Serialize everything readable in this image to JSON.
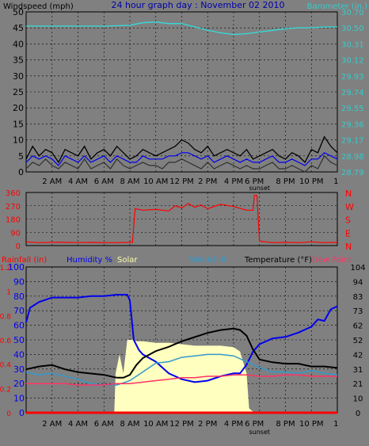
{
  "chart_data": [
    {
      "id": "wind-baro",
      "type": "line",
      "title": "24 hour graph day : November 02 2010",
      "ylabel": "Windspeed (mph)",
      "y2label": "Barometer (in.)",
      "ylim": [
        0,
        50
      ],
      "y_ticks": [
        "50",
        "45",
        "40",
        "35",
        "30",
        "25",
        "20",
        "15",
        "10",
        "5",
        "0"
      ],
      "y2lim": [
        28.79,
        30.7
      ],
      "y2_ticks": [
        "30.70",
        "30.50",
        "30.31",
        "30.12",
        "29.93",
        "29.74",
        "29.55",
        "29.36",
        "29.17",
        "28.98",
        "28.79"
      ],
      "xlim": [
        0,
        24
      ],
      "x_ticks": [
        {
          "x": 2,
          "label": "2 AM"
        },
        {
          "x": 4,
          "label": "4 AM"
        },
        {
          "x": 6,
          "label": "6 AM"
        },
        {
          "x": 8,
          "label": "8 AM"
        },
        {
          "x": 10,
          "label": "10 AM"
        },
        {
          "x": 12,
          "label": "12 PM"
        },
        {
          "x": 14,
          "label": "2 PM"
        },
        {
          "x": 16,
          "label": "4 PM"
        },
        {
          "x": 18,
          "label": "sunset"
        },
        {
          "x": 20,
          "label": "8 PM"
        },
        {
          "x": 22,
          "label": "10 PM"
        },
        {
          "x": 23.9,
          "label": "1"
        }
      ],
      "x_extra_label": {
        "x": 17.6,
        "label": "6 PM"
      },
      "grid": true,
      "colors": {
        "gust": "#000000",
        "avg": "#0000ee",
        "dir": "#303030",
        "baro": "#33dddd",
        "title": "#0000aa",
        "y2": "#33cccc"
      },
      "series": [
        {
          "key": "gust",
          "x": [
            0,
            0.5,
            1,
            1.5,
            2,
            2.5,
            3,
            3.5,
            4,
            4.5,
            5,
            5.5,
            6,
            6.5,
            7,
            7.5,
            8,
            8.5,
            9,
            9.5,
            10,
            10.5,
            11,
            11.5,
            12,
            12.5,
            13,
            13.5,
            14,
            14.5,
            15,
            15.5,
            16,
            16.5,
            17,
            17.5,
            18,
            18.5,
            19,
            19.5,
            20,
            20.5,
            21,
            21.5,
            22,
            22.5,
            23,
            23.5,
            24
          ],
          "values": [
            4,
            8,
            5,
            7,
            6,
            3,
            7,
            6,
            5,
            8,
            4,
            6,
            7,
            5,
            8,
            6,
            4,
            5,
            7,
            6,
            5,
            6,
            7,
            8,
            10,
            9,
            7,
            6,
            8,
            5,
            6,
            7,
            6,
            5,
            7,
            4,
            5,
            6,
            7,
            5,
            4,
            6,
            5,
            3,
            7,
            6,
            11,
            8,
            6
          ]
        },
        {
          "key": "avg",
          "x": [
            0,
            0.5,
            1,
            1.5,
            2,
            2.5,
            3,
            3.5,
            4,
            4.5,
            5,
            5.5,
            6,
            6.5,
            7,
            7.5,
            8,
            8.5,
            9,
            9.5,
            10,
            10.5,
            11,
            11.5,
            12,
            12.5,
            13,
            13.5,
            14,
            14.5,
            15,
            15.5,
            16,
            16.5,
            17,
            17.5,
            18,
            18.5,
            19,
            19.5,
            20,
            20.5,
            21,
            21.5,
            22,
            22.5,
            23,
            23.5,
            24
          ],
          "values": [
            3,
            5,
            4,
            5,
            4,
            2,
            5,
            4,
            3,
            5,
            3,
            4,
            5,
            3,
            5,
            4,
            3,
            3,
            5,
            4,
            4,
            4,
            5,
            5,
            6,
            6,
            5,
            4,
            5,
            3,
            4,
            5,
            4,
            3,
            4,
            3,
            3,
            4,
            5,
            3,
            3,
            4,
            3,
            2,
            4,
            4,
            6,
            5,
            4
          ]
        },
        {
          "key": "dir",
          "x": [
            0,
            0.5,
            1,
            1.5,
            2,
            2.5,
            3,
            3.5,
            4,
            4.5,
            5,
            5.5,
            6,
            6.5,
            7,
            7.5,
            8,
            8.5,
            9,
            9.5,
            10,
            10.5,
            11,
            11.5,
            12,
            12.5,
            13,
            13.5,
            14,
            14.5,
            15,
            15.5,
            16,
            16.5,
            17,
            17.5,
            18,
            18.5,
            19,
            19.5,
            20,
            20.5,
            21,
            21.5,
            22,
            22.5,
            23,
            23.5,
            24
          ],
          "values": [
            1,
            3,
            2,
            4,
            2,
            1,
            3,
            2,
            1,
            4,
            1,
            2,
            3,
            1,
            4,
            2,
            1,
            2,
            3,
            2,
            2,
            1,
            3,
            3,
            4,
            3,
            2,
            1,
            3,
            1,
            2,
            3,
            2,
            1,
            2,
            1,
            1,
            2,
            3,
            1,
            1,
            2,
            1,
            0,
            2,
            1,
            5,
            3,
            2
          ]
        },
        {
          "key": "baro",
          "x": [
            0,
            2,
            4,
            6,
            8,
            9,
            10,
            11,
            12,
            13,
            14,
            15,
            16,
            17,
            18,
            19,
            20,
            21,
            22,
            23,
            24
          ],
          "values": [
            30.53,
            30.53,
            30.53,
            30.53,
            30.54,
            30.57,
            30.58,
            30.56,
            30.56,
            30.52,
            30.48,
            30.45,
            30.43,
            30.44,
            30.46,
            30.48,
            30.5,
            30.51,
            30.51,
            30.52,
            30.52
          ]
        }
      ]
    },
    {
      "id": "wind-direction",
      "type": "line",
      "ylim": [
        0,
        360
      ],
      "y_ticks": [
        "360",
        "270",
        "180",
        "90",
        "0"
      ],
      "y2_ticks": [
        "N",
        "W",
        "S",
        "E",
        "N"
      ],
      "xlim": [
        0,
        24
      ],
      "grid": true,
      "colors": {
        "dir": "#ff0000",
        "y_left": "#ff0000",
        "y_right": "#ff0000"
      },
      "series": [
        {
          "key": "dir",
          "x": [
            0,
            1,
            2,
            3,
            4,
            5,
            6,
            7,
            8,
            8.2,
            8.4,
            9,
            10,
            11,
            11.5,
            12,
            12.5,
            13,
            13.5,
            14,
            15,
            16,
            17,
            17.5,
            17.6,
            17.8,
            18,
            18.5,
            19,
            20,
            21,
            22,
            23,
            24
          ],
          "values": [
            25,
            20,
            22,
            22,
            20,
            22,
            20,
            20,
            22,
            22,
            250,
            240,
            245,
            235,
            270,
            255,
            285,
            260,
            275,
            250,
            280,
            265,
            240,
            240,
            340,
            340,
            30,
            25,
            20,
            22,
            20,
            25,
            20,
            22
          ]
        }
      ]
    },
    {
      "id": "temp-humidity",
      "type": "line",
      "labels": {
        "rain": "Rainfall (in)",
        "humidity": "Humidity %",
        "solar": "Solar",
        "windchill": "Windchill",
        "temp": "Temperature (°F)",
        "dewpoint": "Dew Point"
      },
      "left_outer_ticks": [
        "1.2",
        "1",
        "0.8",
        "0.6",
        "0.4",
        "0.2",
        "0"
      ],
      "left_inner_ticks": [
        "100",
        "90",
        "80",
        "70",
        "60",
        "50",
        "40",
        "30",
        "20",
        "10",
        "0"
      ],
      "right_ticks": [
        "104",
        "94",
        "83",
        "73",
        "62",
        "52",
        "42",
        "31",
        "21",
        "10",
        "0"
      ],
      "ylim": [
        0,
        100
      ],
      "y2lim": [
        0,
        104
      ],
      "xlim": [
        0,
        24
      ],
      "grid": true,
      "colors": {
        "rain": "#ff0000",
        "humidity": "#0000ee",
        "solar": "#ffffc0",
        "solar_label": "#ffffaa",
        "windchill": "#3399cc",
        "temp": "#000000",
        "dewpoint": "#ff3366"
      },
      "series": [
        {
          "key": "solar",
          "x": [
            0,
            6.8,
            6.9,
            7.2,
            7.5,
            7.8,
            8.0,
            8.2,
            8.5,
            9,
            10,
            11,
            12,
            13,
            14,
            15,
            16,
            16.5,
            17,
            17.2,
            17.6,
            24
          ],
          "values": [
            0,
            0,
            27,
            40,
            27,
            50,
            50,
            50,
            49,
            49,
            48,
            48,
            47,
            46,
            46,
            46,
            45,
            42,
            27,
            3,
            0,
            0
          ]
        },
        {
          "key": "humidity",
          "x": [
            0,
            0.3,
            1,
            2,
            3,
            4,
            5,
            6,
            7,
            7.8,
            8,
            8.3,
            8.7,
            9,
            10,
            11,
            12,
            13,
            14,
            15,
            16,
            16.5,
            17,
            17.5,
            18,
            19,
            20,
            21,
            22,
            22.5,
            23,
            23.5,
            24
          ],
          "values": [
            62,
            72,
            76,
            79,
            79,
            79,
            80,
            80,
            81,
            81,
            77,
            50,
            43,
            40,
            35,
            27,
            23,
            21,
            22,
            25,
            27,
            27,
            33,
            42,
            47,
            51,
            52,
            55,
            59,
            64,
            63,
            71,
            73
          ]
        },
        {
          "key": "windchill",
          "x": [
            0,
            1,
            2,
            3,
            4,
            5,
            6,
            7,
            8,
            9,
            10,
            11,
            12,
            13,
            14,
            15,
            16,
            17,
            18,
            19,
            20,
            21,
            22,
            23,
            24
          ],
          "values": [
            28,
            26,
            27,
            25,
            23,
            20,
            19,
            19,
            22,
            28,
            34,
            35,
            38,
            39,
            40,
            40,
            39,
            35,
            31,
            28,
            28,
            27,
            29,
            27,
            26
          ]
        },
        {
          "key": "temp",
          "x": [
            0,
            1,
            2,
            3,
            4,
            5,
            6,
            7,
            7.5,
            8,
            8.5,
            9,
            10,
            11,
            12,
            13,
            14,
            15,
            16,
            16.5,
            17,
            17.5,
            18,
            19,
            20,
            21,
            22,
            23,
            24
          ],
          "values": [
            31,
            33,
            34,
            31,
            29,
            28,
            27,
            25,
            25,
            27,
            34,
            39,
            44,
            47,
            51,
            54,
            57,
            59,
            60,
            59,
            55,
            45,
            38,
            36,
            35,
            35,
            33,
            33,
            32
          ]
        },
        {
          "key": "dewpoint",
          "x": [
            0,
            1,
            2,
            3,
            4,
            5,
            6,
            7,
            8,
            9,
            10,
            11,
            12,
            13,
            14,
            15,
            16,
            17,
            18,
            19,
            20,
            21,
            22,
            23,
            24
          ],
          "values": [
            20,
            20,
            20,
            20,
            19,
            19,
            19,
            20,
            20,
            21,
            22,
            23,
            24,
            24,
            25,
            25,
            26,
            26,
            25,
            25,
            26,
            26,
            25,
            25,
            25
          ]
        },
        {
          "key": "rain",
          "x": [
            0,
            24
          ],
          "values": [
            0,
            0
          ]
        }
      ]
    }
  ]
}
